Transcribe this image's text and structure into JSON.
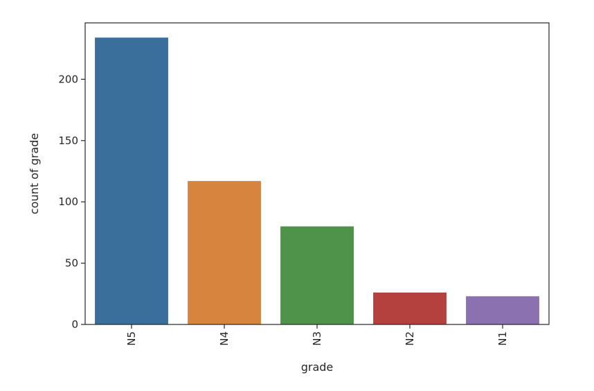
{
  "chart_data": {
    "type": "bar",
    "title": "",
    "xlabel": "grade",
    "ylabel": "count of grade",
    "categories": [
      "N5",
      "N4",
      "N3",
      "N2",
      "N1"
    ],
    "values": [
      234,
      117,
      80,
      26,
      23
    ],
    "colors": [
      "#3a6f9c",
      "#d6843e",
      "#4f934a",
      "#b4413e",
      "#8b71b0"
    ],
    "ylim": [
      0,
      246
    ],
    "yticks": [
      0,
      50,
      100,
      150,
      200
    ],
    "ytick_labels": [
      "0",
      "50",
      "100",
      "150",
      "200"
    ],
    "grid": false,
    "legend": false,
    "x_tick_rotation": "vertical"
  }
}
